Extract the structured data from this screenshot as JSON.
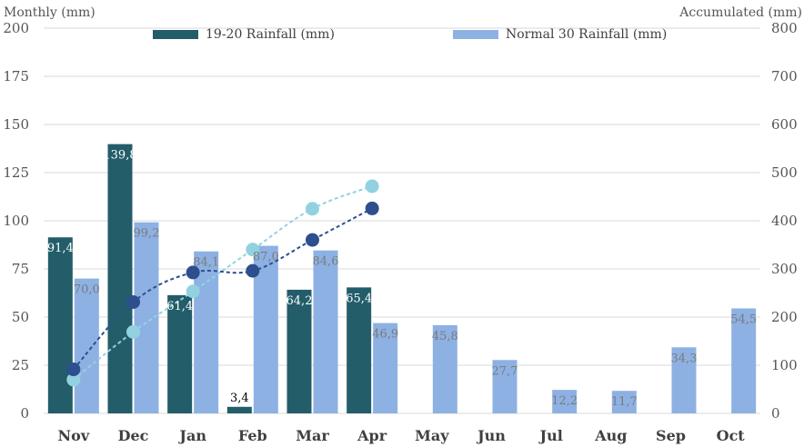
{
  "colors": {
    "actual": "#235d69",
    "normal": "#8eb1e3",
    "acc_actual": "#2e4f8e",
    "acc_normal": "#92d2e0",
    "grid": "#d9d9d9",
    "text": "#555555"
  },
  "chart_data": {
    "type": "bar",
    "categories": [
      "Nov",
      "Dec",
      "Jan",
      "Feb",
      "Mar",
      "Apr",
      "May",
      "Jun",
      "Jul",
      "Aug",
      "Sep",
      "Oct"
    ],
    "ylabel": "Monthly (mm)",
    "y2label": "Accumulated (mm)",
    "ylim": [
      0,
      200
    ],
    "y2lim": [
      0,
      800
    ],
    "yticks": [
      0,
      25,
      50,
      75,
      100,
      125,
      150,
      175,
      200
    ],
    "y2ticks": [
      0,
      100,
      200,
      300,
      400,
      500,
      600,
      700,
      800
    ],
    "grid": true,
    "legend_position": "top",
    "series": [
      {
        "name": "19-20  Rainfall (mm)",
        "type": "bar",
        "axis": "left",
        "values": [
          91.4,
          139.8,
          61.4,
          3.4,
          64.2,
          65.4,
          null,
          null,
          null,
          null,
          null,
          null
        ],
        "labels": [
          "91,4",
          "139,8",
          "61,4",
          "3,4",
          "64,2",
          "65,4",
          "",
          "",
          "",
          "",
          "",
          ""
        ]
      },
      {
        "name": "Normal 30 Rainfall (mm)",
        "type": "bar",
        "axis": "left",
        "values": [
          70.0,
          99.2,
          84.1,
          87.0,
          84.6,
          46.9,
          45.8,
          27.7,
          12.2,
          11.7,
          34.3,
          54.5
        ],
        "labels": [
          "70,0",
          "99,2",
          "84,1",
          "87,0",
          "84,6",
          "46,9",
          "45,8",
          "27,7",
          "12,2",
          "11,7",
          "34,3",
          "54,5"
        ]
      },
      {
        "type": "line",
        "axis": "right",
        "style": "dashed",
        "values": [
          91.4,
          231.2,
          292.6,
          296.0,
          360.2,
          425.6,
          null,
          null,
          null,
          null,
          null,
          null
        ]
      },
      {
        "type": "line",
        "axis": "right",
        "style": "dashed",
        "values": [
          70.0,
          169.2,
          253.3,
          340.3,
          424.9,
          471.8,
          null,
          null,
          null,
          null,
          null,
          null
        ]
      }
    ]
  }
}
